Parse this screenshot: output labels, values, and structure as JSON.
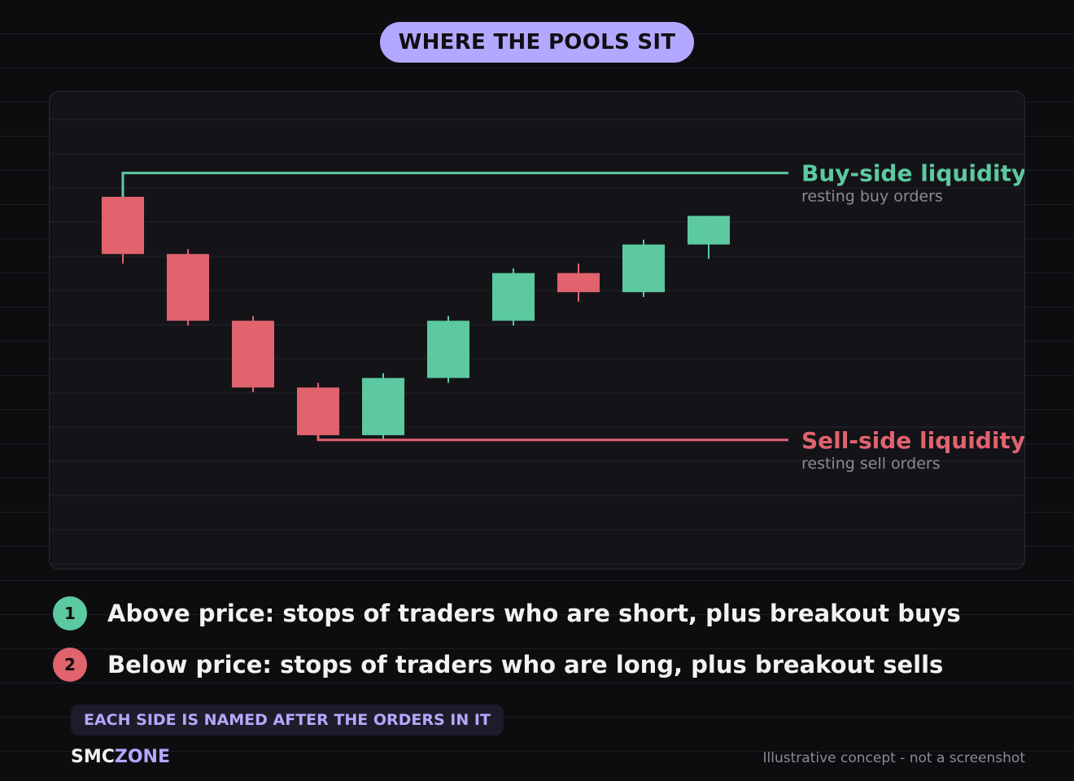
{
  "title": "WHERE THE POOLS SIT",
  "colors": {
    "bull": "#5cc9a0",
    "bear": "#e0636e",
    "accent": "#b3a8ff",
    "background": "#0d0d10"
  },
  "chart_data": {
    "type": "candlestick",
    "candles": [
      {
        "open": 64.0,
        "high": 66.5,
        "low": 57.0,
        "close": 58.0
      },
      {
        "open": 58.0,
        "high": 58.5,
        "low": 50.5,
        "close": 51.0
      },
      {
        "open": 51.0,
        "high": 51.5,
        "low": 43.5,
        "close": 44.0
      },
      {
        "open": 44.0,
        "high": 44.5,
        "low": 39.0,
        "close": 39.0
      },
      {
        "open": 39.0,
        "high": 45.5,
        "low": 38.5,
        "close": 45.0
      },
      {
        "open": 45.0,
        "high": 51.5,
        "low": 44.5,
        "close": 51.0
      },
      {
        "open": 51.0,
        "high": 56.5,
        "low": 50.5,
        "close": 56.0
      },
      {
        "open": 56.0,
        "high": 57.0,
        "low": 53.0,
        "close": 54.0
      },
      {
        "open": 54.0,
        "high": 59.5,
        "low": 53.5,
        "close": 59.0
      },
      {
        "open": 59.0,
        "high": 62.0,
        "low": 57.5,
        "close": 62.0
      }
    ],
    "ylim": [
      25,
      75
    ],
    "levels": [
      {
        "label": "Buy-side liquidity",
        "sublabel": "resting buy orders",
        "price": 66.5,
        "start_candle": 0,
        "color": "#5cc9a0"
      },
      {
        "label": "Sell-side liquidity",
        "sublabel": "resting sell orders",
        "price": 38.5,
        "start_candle": 3,
        "color": "#e0636e"
      }
    ],
    "grid": true
  },
  "points": [
    {
      "number": "1",
      "text": "Above price: stops of traders who are short, plus breakout buys",
      "tone": "green"
    },
    {
      "number": "2",
      "text": "Below price: stops of traders who are long, plus breakout sells",
      "tone": "red"
    }
  ],
  "note": "EACH SIDE IS NAMED AFTER THE ORDERS IN IT",
  "brand": {
    "part1": "SMC",
    "part2": "ZONE"
  },
  "disclaimer": "Illustrative concept - not a screenshot"
}
